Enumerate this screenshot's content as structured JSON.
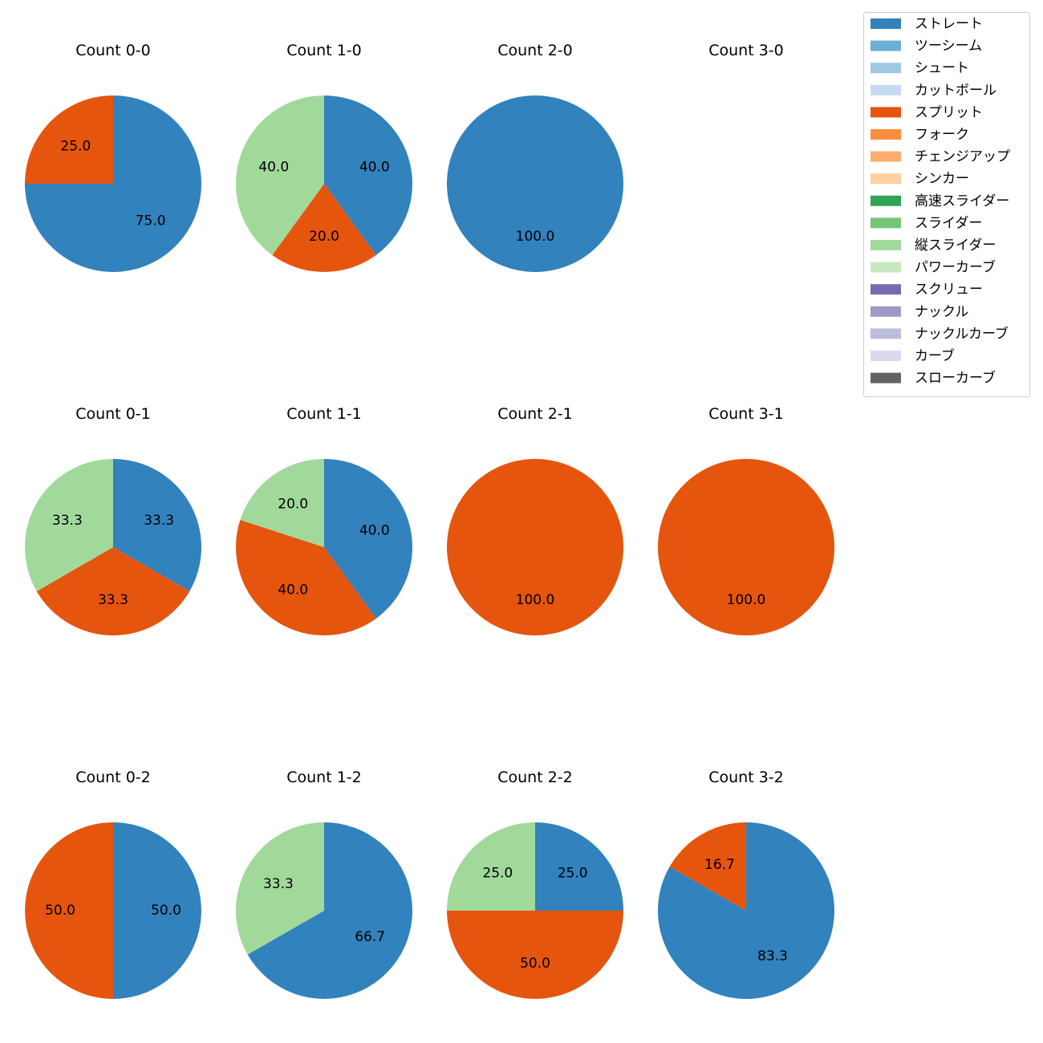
{
  "chart_data": {
    "type": "pie",
    "legend": {
      "placement": "top-right",
      "entries": [
        {
          "name": "ストレート",
          "color": "#3182bd"
        },
        {
          "name": "ツーシーム",
          "color": "#6baed6"
        },
        {
          "name": "シュート",
          "color": "#9ecae1"
        },
        {
          "name": "カットボール",
          "color": "#c6dbef"
        },
        {
          "name": "スプリット",
          "color": "#e6550d"
        },
        {
          "name": "フォーク",
          "color": "#fd8d3c"
        },
        {
          "name": "チェンジアップ",
          "color": "#fdae6b"
        },
        {
          "name": "シンカー",
          "color": "#fdd0a2"
        },
        {
          "name": "高速スライダー",
          "color": "#31a354"
        },
        {
          "name": "スライダー",
          "color": "#74c476"
        },
        {
          "name": "縦スライダー",
          "color": "#a1d99b"
        },
        {
          "name": "パワーカーブ",
          "color": "#c7e9c0"
        },
        {
          "name": "スクリュー",
          "color": "#756bb1"
        },
        {
          "name": "ナックル",
          "color": "#9e9ac8"
        },
        {
          "name": "ナックルカーブ",
          "color": "#bcbddc"
        },
        {
          "name": "カーブ",
          "color": "#dadaeb"
        },
        {
          "name": "スローカーブ",
          "color": "#636363"
        }
      ]
    },
    "panels": [
      {
        "title": "Count 0-0",
        "slices": [
          {
            "pitch": "ストレート",
            "value": 75.0,
            "label": "75.0"
          },
          {
            "pitch": "スプリット",
            "value": 25.0,
            "label": "25.0"
          }
        ]
      },
      {
        "title": "Count 1-0",
        "slices": [
          {
            "pitch": "ストレート",
            "value": 40.0,
            "label": "40.0"
          },
          {
            "pitch": "スプリット",
            "value": 20.0,
            "label": "20.0"
          },
          {
            "pitch": "縦スライダー",
            "value": 40.0,
            "label": "40.0"
          }
        ]
      },
      {
        "title": "Count 2-0",
        "slices": [
          {
            "pitch": "ストレート",
            "value": 100.0,
            "label": "100.0"
          }
        ]
      },
      {
        "title": "Count 3-0",
        "slices": []
      },
      {
        "title": "Count 0-1",
        "slices": [
          {
            "pitch": "ストレート",
            "value": 33.3,
            "label": "33.3"
          },
          {
            "pitch": "スプリット",
            "value": 33.3,
            "label": "33.3"
          },
          {
            "pitch": "縦スライダー",
            "value": 33.3,
            "label": "33.3"
          }
        ]
      },
      {
        "title": "Count 1-1",
        "slices": [
          {
            "pitch": "ストレート",
            "value": 40.0,
            "label": "40.0"
          },
          {
            "pitch": "スプリット",
            "value": 40.0,
            "label": "40.0"
          },
          {
            "pitch": "縦スライダー",
            "value": 20.0,
            "label": "20.0"
          }
        ]
      },
      {
        "title": "Count 2-1",
        "slices": [
          {
            "pitch": "スプリット",
            "value": 100.0,
            "label": "100.0"
          }
        ]
      },
      {
        "title": "Count 3-1",
        "slices": [
          {
            "pitch": "スプリット",
            "value": 100.0,
            "label": "100.0"
          }
        ]
      },
      {
        "title": "Count 0-2",
        "slices": [
          {
            "pitch": "ストレート",
            "value": 50.0,
            "label": "50.0"
          },
          {
            "pitch": "スプリット",
            "value": 50.0,
            "label": "50.0"
          }
        ]
      },
      {
        "title": "Count 1-2",
        "slices": [
          {
            "pitch": "ストレート",
            "value": 66.7,
            "label": "66.7"
          },
          {
            "pitch": "縦スライダー",
            "value": 33.3,
            "label": "33.3"
          }
        ]
      },
      {
        "title": "Count 2-2",
        "slices": [
          {
            "pitch": "ストレート",
            "value": 25.0,
            "label": "25.0"
          },
          {
            "pitch": "スプリット",
            "value": 50.0,
            "label": "50.0"
          },
          {
            "pitch": "縦スライダー",
            "value": 25.0,
            "label": "25.0"
          }
        ]
      },
      {
        "title": "Count 3-2",
        "slices": [
          {
            "pitch": "ストレート",
            "value": 83.3,
            "label": "83.3"
          },
          {
            "pitch": "スプリット",
            "value": 16.7,
            "label": "16.7"
          }
        ]
      }
    ]
  }
}
